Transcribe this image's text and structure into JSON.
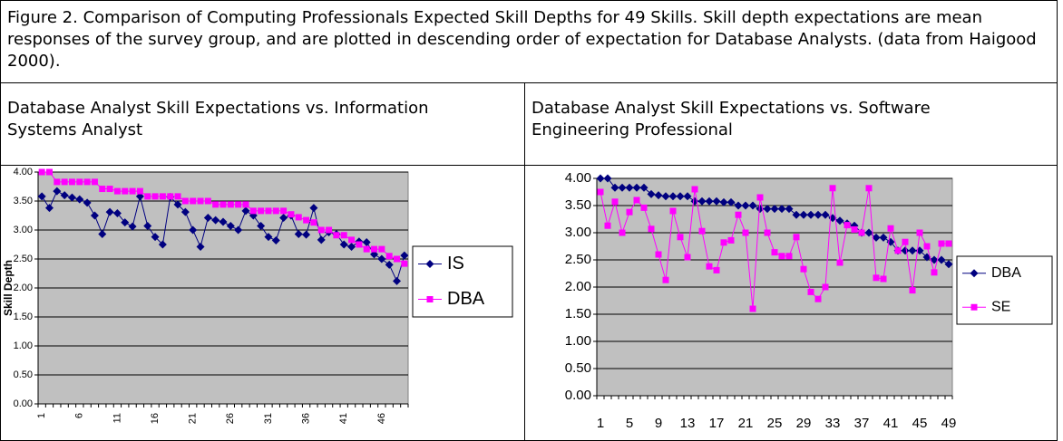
{
  "caption": "Figure 2.  Comparison of Computing Professionals Expected Skill Depths for 49 Skills.  Skill depth expectations are mean responses of the survey group, and are plotted in descending order of expectation for Database Analysts. (data from Haigood 2000).",
  "panels": [
    {
      "heading": "Database Analyst Skill Expectations vs. Information Systems Analyst"
    },
    {
      "heading": "Database Analyst Skill Expectations vs. Software Engineering Professional"
    }
  ],
  "chart_data": [
    {
      "type": "line",
      "ylabel": "Skill Depth",
      "categories": [
        "1",
        null,
        null,
        null,
        null,
        "6",
        null,
        null,
        null,
        null,
        "11",
        null,
        null,
        null,
        null,
        "16",
        null,
        null,
        null,
        null,
        "21",
        null,
        null,
        null,
        null,
        "26",
        null,
        null,
        null,
        null,
        "31",
        null,
        null,
        null,
        null,
        "36",
        null,
        null,
        null,
        null,
        "41",
        null,
        null,
        null,
        null,
        "46",
        null,
        null,
        null
      ],
      "series": [
        {
          "name": "IS",
          "color": "#000080",
          "marker": "diamond",
          "values": [
            3.58,
            3.38,
            3.67,
            3.6,
            3.56,
            3.53,
            3.47,
            3.25,
            2.93,
            3.31,
            3.29,
            3.13,
            3.06,
            3.58,
            3.07,
            2.88,
            2.75,
            3.57,
            3.44,
            3.31,
            3.0,
            2.71,
            3.21,
            3.17,
            3.14,
            3.07,
            3.0,
            3.33,
            3.25,
            3.07,
            2.88,
            2.82,
            3.21,
            3.25,
            2.93,
            2.92,
            3.38,
            2.83,
            2.96,
            2.93,
            2.75,
            2.71,
            2.8,
            2.79,
            2.58,
            2.5,
            2.4,
            2.12,
            2.56
          ]
        },
        {
          "name": "DBA",
          "color": "#ff00ff",
          "marker": "square",
          "values": [
            4.0,
            4.0,
            3.83,
            3.83,
            3.83,
            3.83,
            3.83,
            3.83,
            3.71,
            3.71,
            3.67,
            3.67,
            3.67,
            3.67,
            3.58,
            3.58,
            3.58,
            3.58,
            3.58,
            3.5,
            3.5,
            3.5,
            3.5,
            3.44,
            3.44,
            3.44,
            3.44,
            3.44,
            3.33,
            3.33,
            3.33,
            3.33,
            3.33,
            3.27,
            3.22,
            3.17,
            3.13,
            3.0,
            3.0,
            2.91,
            2.91,
            2.83,
            2.75,
            2.67,
            2.67,
            2.67,
            2.55,
            2.5,
            2.42
          ]
        }
      ],
      "ylim": [
        0,
        4
      ],
      "yticks": [
        {
          "value": 0,
          "label": "0.00"
        },
        {
          "value": 0.5,
          "label": "0.50"
        },
        {
          "value": 1,
          "label": "1.00"
        },
        {
          "value": 1.5,
          "label": "1.50"
        },
        {
          "value": 2,
          "label": "2.00"
        },
        {
          "value": 2.5,
          "label": "2.50"
        },
        {
          "value": 3,
          "label": "3.00"
        },
        {
          "value": 3.5,
          "label": "3.50"
        },
        {
          "value": 4,
          "label": "4.00"
        }
      ],
      "grid": true,
      "legend": "right",
      "plot_background": "#c0c0c0"
    },
    {
      "type": "line",
      "categories": [
        "1",
        null,
        null,
        null,
        "5",
        null,
        null,
        null,
        "9",
        null,
        null,
        null,
        "13",
        null,
        null,
        null,
        "17",
        null,
        null,
        null,
        "21",
        null,
        null,
        null,
        "25",
        null,
        null,
        null,
        "29",
        null,
        null,
        null,
        "33",
        null,
        null,
        null,
        "37",
        null,
        null,
        null,
        "41",
        null,
        null,
        null,
        "45",
        null,
        null,
        null,
        "49"
      ],
      "series": [
        {
          "name": "DBA",
          "color": "#000080",
          "marker": "diamond",
          "values": [
            4.0,
            4.0,
            3.83,
            3.83,
            3.83,
            3.83,
            3.83,
            3.71,
            3.69,
            3.67,
            3.67,
            3.67,
            3.67,
            3.58,
            3.58,
            3.58,
            3.58,
            3.56,
            3.56,
            3.5,
            3.5,
            3.5,
            3.44,
            3.44,
            3.44,
            3.44,
            3.44,
            3.33,
            3.33,
            3.33,
            3.33,
            3.33,
            3.27,
            3.22,
            3.17,
            3.13,
            3.0,
            3.0,
            2.91,
            2.91,
            2.83,
            2.67,
            2.67,
            2.67,
            2.67,
            2.55,
            2.5,
            2.5,
            2.42
          ]
        },
        {
          "name": "SE",
          "color": "#ff00ff",
          "marker": "square",
          "values": [
            3.75,
            3.13,
            3.57,
            3.0,
            3.38,
            3.6,
            3.46,
            3.07,
            2.6,
            2.13,
            3.4,
            2.92,
            2.55,
            3.8,
            3.03,
            2.38,
            2.31,
            2.82,
            2.86,
            3.33,
            3.0,
            1.6,
            3.65,
            3.0,
            2.64,
            2.57,
            2.57,
            2.92,
            2.33,
            1.91,
            1.78,
            2.0,
            3.82,
            2.45,
            3.14,
            3.06,
            3.0,
            3.82,
            2.17,
            2.15,
            3.08,
            2.67,
            2.83,
            1.94,
            3.0,
            2.75,
            2.27,
            2.8,
            2.8
          ]
        }
      ],
      "ylim": [
        0,
        4
      ],
      "yticks": [
        {
          "value": 0,
          "label": "0.00"
        },
        {
          "value": 0.5,
          "label": "0.50"
        },
        {
          "value": 1,
          "label": "1.00"
        },
        {
          "value": 1.5,
          "label": "1.50"
        },
        {
          "value": 2,
          "label": "2.00"
        },
        {
          "value": 2.5,
          "label": "2.50"
        },
        {
          "value": 3,
          "label": "3.00"
        },
        {
          "value": 3.5,
          "label": "3.50"
        },
        {
          "value": 4,
          "label": "4.00"
        }
      ],
      "grid": true,
      "legend": "right",
      "plot_background": "#c0c0c0"
    }
  ]
}
